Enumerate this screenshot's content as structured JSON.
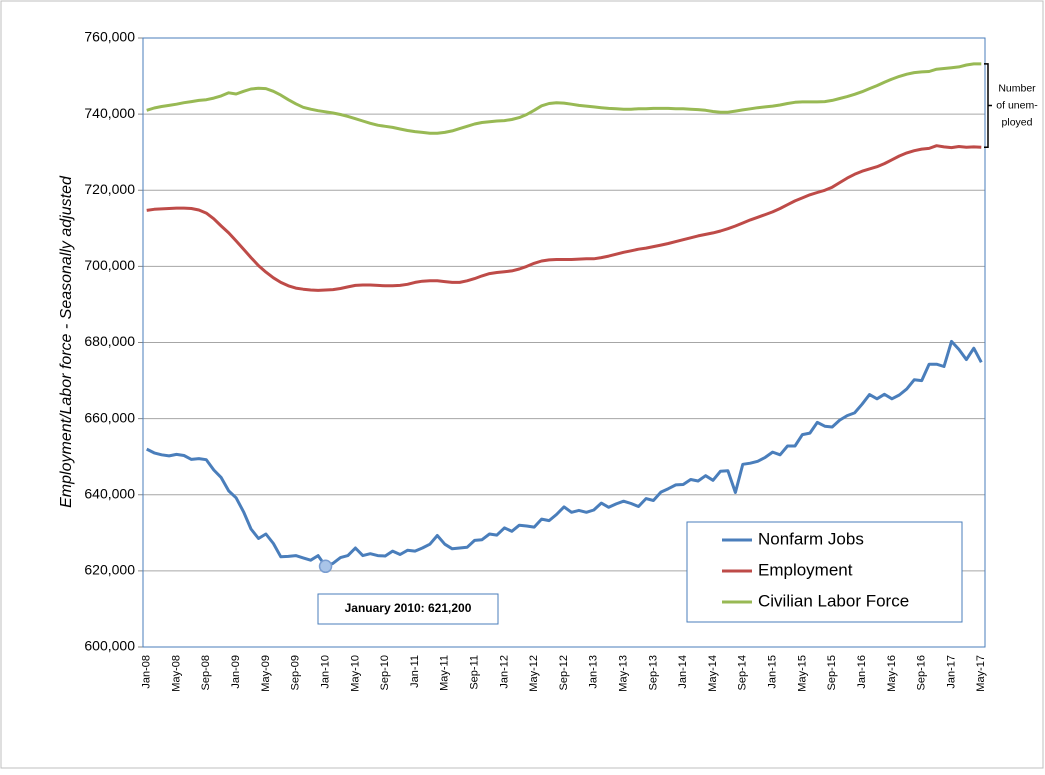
{
  "chart_data": {
    "type": "line",
    "y_label": "Employment/Labor force - Seasonally adjusted",
    "categories": [
      "Jan-08",
      null,
      null,
      null,
      "May-08",
      null,
      null,
      null,
      "Sep-08",
      null,
      null,
      null,
      "Jan-09",
      null,
      null,
      null,
      "May-09",
      null,
      null,
      null,
      "Sep-09",
      null,
      null,
      null,
      "Jan-10",
      null,
      null,
      null,
      "May-10",
      null,
      null,
      null,
      "Sep-10",
      null,
      null,
      null,
      "Jan-11",
      null,
      null,
      null,
      "May-11",
      null,
      null,
      null,
      "Sep-11",
      null,
      null,
      null,
      "Jan-12",
      null,
      null,
      null,
      "May-12",
      null,
      null,
      null,
      "Sep-12",
      null,
      null,
      null,
      "Jan-13",
      null,
      null,
      null,
      "May-13",
      null,
      null,
      null,
      "Sep-13",
      null,
      null,
      null,
      "Jan-14",
      null,
      null,
      null,
      "May-14",
      null,
      null,
      null,
      "Sep-14",
      null,
      null,
      null,
      "Jan-15",
      null,
      null,
      null,
      "May-15",
      null,
      null,
      null,
      "Sep-15",
      null,
      null,
      null,
      "Jan-16",
      null,
      null,
      null,
      "May-16",
      null,
      null,
      null,
      "Sep-16",
      null,
      null,
      null,
      "Jan-17",
      null,
      null,
      null,
      "May-17"
    ],
    "series": [
      {
        "name": "Nonfarm Jobs",
        "color": "#4a7ebb",
        "values": [
          652000,
          651000,
          650500,
          650200,
          650600,
          650300,
          649300,
          649500,
          649200,
          646500,
          644500,
          641000,
          639200,
          635500,
          631000,
          628500,
          629700,
          627200,
          623700,
          623800,
          624000,
          623400,
          622800,
          624000,
          621200,
          622000,
          623500,
          624000,
          626000,
          624000,
          624500,
          624000,
          623900,
          625200,
          624300,
          625400,
          625200,
          626000,
          627000,
          629300,
          627000,
          625800,
          626000,
          626200,
          628000,
          628200,
          629700,
          629400,
          631300,
          630400,
          632000,
          631800,
          631500,
          633600,
          633200,
          634800,
          636800,
          635400,
          635900,
          635400,
          636000,
          637800,
          636700,
          637600,
          638300,
          637700,
          636900,
          639000,
          638500,
          640700,
          641600,
          642600,
          642700,
          644000,
          643600,
          645000,
          643800,
          646200,
          646300,
          640600,
          648000,
          648300,
          648800,
          649800,
          651200,
          650500,
          652800,
          652800,
          655800,
          656200,
          659000,
          658000,
          657800,
          659600,
          660800,
          661500,
          663800,
          666300,
          665200,
          666400,
          665200,
          666200,
          667800,
          670200,
          670000,
          674300,
          674300,
          673700,
          680300,
          678200,
          675500,
          678500,
          674800
        ]
      },
      {
        "name": "Employment",
        "color": "#be4b48",
        "values": [
          714700,
          715000,
          715100,
          715200,
          715300,
          715300,
          715200,
          714800,
          714000,
          712500,
          710600,
          708800,
          706700,
          704500,
          702300,
          700200,
          698500,
          697000,
          695800,
          694900,
          694300,
          694000,
          693800,
          693700,
          693800,
          693900,
          694200,
          694600,
          695000,
          695100,
          695100,
          695000,
          694900,
          694900,
          695000,
          695300,
          695800,
          696100,
          696200,
          696200,
          696000,
          695800,
          695800,
          696200,
          696800,
          697500,
          698100,
          698400,
          698600,
          698800,
          699300,
          700000,
          700800,
          701400,
          701700,
          701800,
          701800,
          701800,
          701900,
          702000,
          702000,
          702300,
          702700,
          703200,
          703700,
          704100,
          704500,
          704800,
          705200,
          705600,
          706000,
          706500,
          707000,
          707500,
          708000,
          708400,
          708800,
          709300,
          709900,
          710600,
          711400,
          712200,
          712900,
          713600,
          714300,
          715200,
          716200,
          717200,
          718000,
          718800,
          719400,
          720000,
          720800,
          722000,
          723200,
          724200,
          725000,
          725600,
          726200,
          727000,
          728000,
          729000,
          729800,
          730400,
          730800,
          731000,
          731700,
          731400,
          731200,
          731500,
          731300,
          731400,
          731300
        ]
      },
      {
        "name": "Civilian Labor Force",
        "color": "#98b954",
        "values": [
          741000,
          741600,
          742000,
          742300,
          742600,
          743000,
          743300,
          743600,
          743800,
          744200,
          744800,
          745600,
          745300,
          746000,
          746600,
          746800,
          746700,
          746000,
          745000,
          743800,
          742700,
          741800,
          741300,
          740900,
          740600,
          740300,
          739900,
          739400,
          738800,
          738200,
          737600,
          737100,
          736800,
          736500,
          736100,
          735700,
          735400,
          735200,
          735000,
          735000,
          735200,
          735600,
          736200,
          736800,
          737400,
          737800,
          738000,
          738200,
          738300,
          738600,
          739100,
          739900,
          741000,
          742200,
          742800,
          743000,
          742900,
          742600,
          742300,
          742100,
          741900,
          741700,
          741500,
          741400,
          741300,
          741300,
          741400,
          741400,
          741500,
          741500,
          741500,
          741400,
          741400,
          741300,
          741200,
          741000,
          740700,
          740500,
          740500,
          740800,
          741100,
          741400,
          741700,
          741900,
          742100,
          742400,
          742800,
          743100,
          743200,
          743200,
          743200,
          743300,
          743600,
          744100,
          744600,
          745200,
          745900,
          746700,
          747500,
          748400,
          749200,
          749900,
          750500,
          750900,
          751100,
          751200,
          751800,
          752000,
          752200,
          752400,
          752900,
          753200,
          753200
        ]
      }
    ],
    "ylim": [
      600000,
      760000
    ],
    "yticks": [
      {
        "value": 600000,
        "label": "600,000"
      },
      {
        "value": 620000,
        "label": "620,000"
      },
      {
        "value": 640000,
        "label": "640,000"
      },
      {
        "value": 660000,
        "label": "660,000"
      },
      {
        "value": 680000,
        "label": "680,000"
      },
      {
        "value": 700000,
        "label": "700,000"
      },
      {
        "value": 720000,
        "label": "720,000"
      },
      {
        "value": 740000,
        "label": "740,000"
      },
      {
        "value": 760000,
        "label": "760,000"
      }
    ],
    "grid": true,
    "legend_position": "lower right",
    "annotation": "January 2010: 621,200",
    "bracket_label": [
      "Number",
      "of unem-",
      "ployed"
    ]
  }
}
